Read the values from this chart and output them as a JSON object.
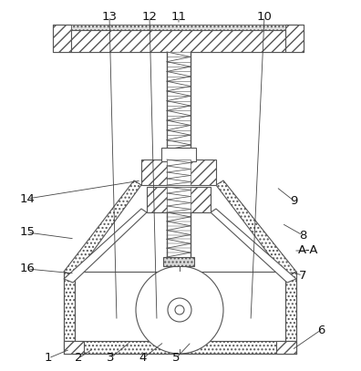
{
  "bg_color": "#ffffff",
  "line_color": "#555555",
  "figsize": [
    3.96,
    4.07
  ],
  "dpi": 100,
  "label_fontsize": 9.5
}
